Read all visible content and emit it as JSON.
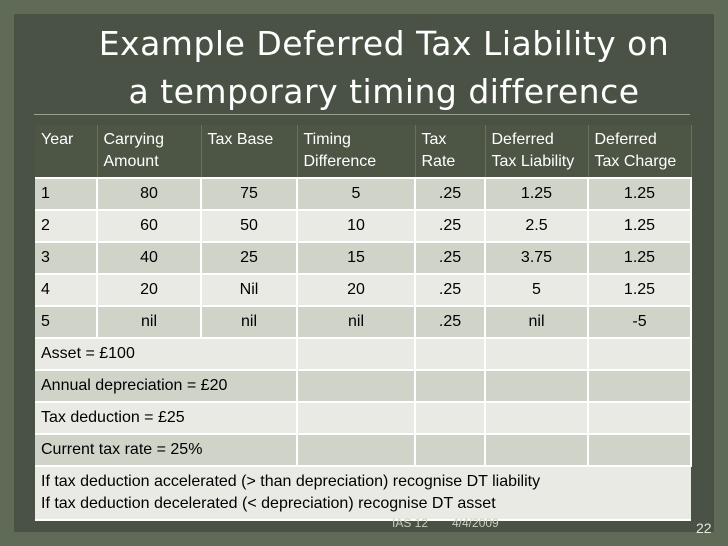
{
  "slide": {
    "title_line1": "Example Deferred Tax Liability on",
    "title_line2": "a temporary timing difference"
  },
  "table": {
    "headers": [
      "Year",
      "Carrying Amount",
      "Tax Base",
      "Timing Difference",
      "Tax Rate",
      "Deferred Tax Liability",
      "Deferred Tax Charge"
    ],
    "rows": [
      [
        "1",
        "80",
        "75",
        "5",
        ".25",
        "1.25",
        "1.25"
      ],
      [
        "2",
        "60",
        "50",
        "10",
        ".25",
        "2.5",
        "1.25"
      ],
      [
        "3",
        "40",
        "25",
        "15",
        ".25",
        "3.75",
        "1.25"
      ],
      [
        "4",
        "20",
        "Nil",
        "20",
        ".25",
        "5",
        "1.25"
      ],
      [
        "5",
        "nil",
        "nil",
        "nil",
        ".25",
        "nil",
        "-5"
      ]
    ],
    "notes": [
      "Asset = £100",
      "Annual depreciation = £20",
      "Tax deduction = £25",
      "Current tax rate = 25%"
    ],
    "final_line1": "If tax deduction accelerated (> than depreciation) recognise DT liability",
    "final_line2": "If tax deduction decelerated (< depreciation) recognise DT asset"
  },
  "footer": {
    "center": "IAS 12",
    "date": "4/4/2009",
    "page_number": "22"
  }
}
